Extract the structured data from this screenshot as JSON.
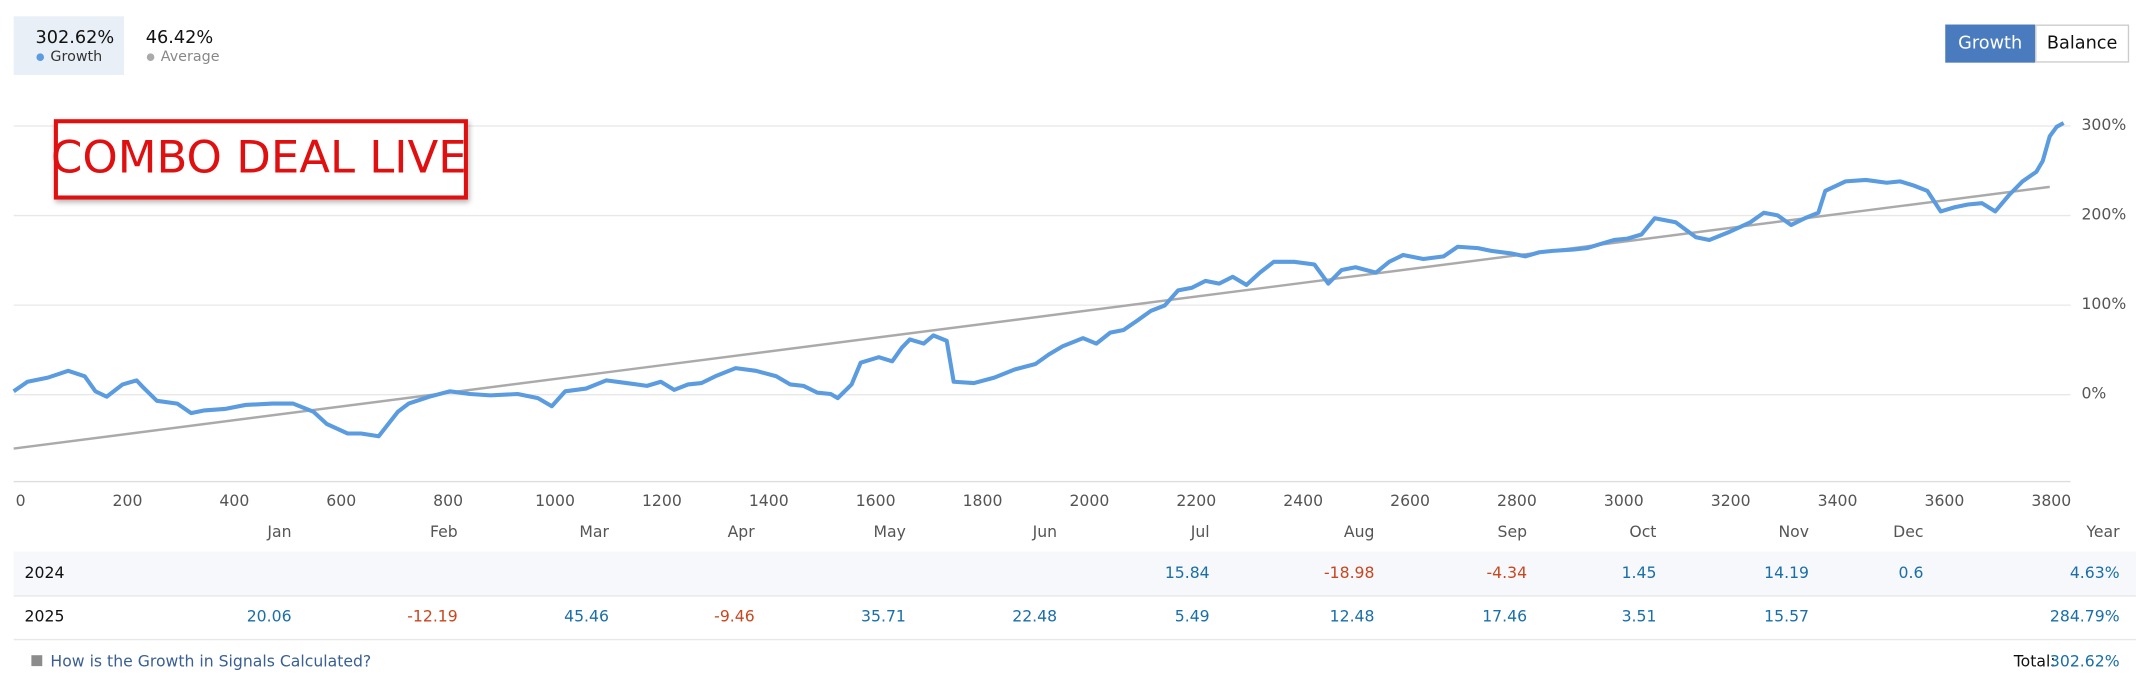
{
  "header": {
    "growth_value": "302.62%",
    "average_value": "46.42%",
    "tabs": [
      "Growth",
      "Balance"
    ]
  },
  "annotation": "COMBO DEAL LIVE",
  "chart_data": {
    "type": "line",
    "series": [
      {
        "name": "Growth",
        "color": "#5b9be0",
        "x": [
          -13,
          13,
          51,
          89,
          120,
          140,
          161,
          191,
          217,
          229,
          255,
          293,
          319,
          344,
          382,
          421,
          471,
          510,
          548,
          573,
          612,
          637,
          670,
          688,
          706,
          726,
          765,
          803,
          841,
          879,
          930,
          968,
          994,
          1019,
          1058,
          1096,
          1134,
          1172,
          1198,
          1223,
          1249,
          1274,
          1300,
          1338,
          1376,
          1414,
          1440,
          1465,
          1491,
          1516,
          1529,
          1555,
          1572,
          1606,
          1631,
          1649,
          1664,
          1690,
          1708,
          1733,
          1746,
          1784,
          1822,
          1860,
          1899,
          1924,
          1950,
          1988,
          2013,
          2039,
          2064,
          2090,
          2115,
          2141,
          2166,
          2192,
          2217,
          2243,
          2268,
          2294,
          2319,
          2345,
          2383,
          2421,
          2447,
          2472,
          2498,
          2536,
          2561,
          2587,
          2625,
          2663,
          2689,
          2727,
          2752,
          2791,
          2816,
          2842,
          2867,
          2905,
          2931,
          2956,
          2982,
          3007,
          3033,
          3058,
          3097,
          3135,
          3160,
          3198,
          3237,
          3262,
          3288,
          3313,
          3339,
          3364,
          3377,
          3415,
          3453,
          3492,
          3517,
          3542,
          3568,
          3593,
          3619,
          3644,
          3670,
          3695,
          3721,
          3746,
          3772,
          3784,
          3797,
          3810,
          3823
        ],
        "values": [
          3.0,
          13.7,
          18.3,
          25.9,
          19.8,
          3.0,
          -3.0,
          10.7,
          15.2,
          7.6,
          -7.6,
          -10.7,
          -21.3,
          -18.3,
          -16.7,
          -12.2,
          -10.7,
          -10.7,
          -19.8,
          -33.5,
          -44.1,
          -44.1,
          -47.2,
          -33.5,
          -19.8,
          -10.7,
          -3.0,
          3.0,
          0,
          -1.5,
          0,
          -4.6,
          -13.7,
          3.0,
          6.1,
          15.2,
          12.2,
          9.1,
          13.7,
          4.6,
          10.7,
          12.2,
          19.8,
          28.9,
          25.9,
          19.8,
          10.7,
          9.1,
          1.5,
          0,
          -4.6,
          10.7,
          35.0,
          41.1,
          36.5,
          51.7,
          60.9,
          56.3,
          65.4,
          59.4,
          13.7,
          12.2,
          18.3,
          27.4,
          33.5,
          44.1,
          53.3,
          62.4,
          56.3,
          68.5,
          71.5,
          82.2,
          92.8,
          98.9,
          115.7,
          118.7,
          126.3,
          123.3,
          130.9,
          121.8,
          135.5,
          147.6,
          147.6,
          144.6,
          123.3,
          138.5,
          141.5,
          135.5,
          147.6,
          155.2,
          150.7,
          153.7,
          164.4,
          162.9,
          159.8,
          156.8,
          153.7,
          158.3,
          159.8,
          161.3,
          162.9,
          167.4,
          172.0,
          173.5,
          178.1,
          196.3,
          191.8,
          175.0,
          172.0,
          181.1,
          191.8,
          202.4,
          199.4,
          188.7,
          196.3,
          202.4,
          226.8,
          237.4,
          239.0,
          235.9,
          237.4,
          232.9,
          226.8,
          203.9,
          208.5,
          211.6,
          213.1,
          203.9,
          222.2,
          237.4,
          248.1,
          260.3,
          287.7,
          298.3,
          302.62
        ]
      },
      {
        "name": "Average",
        "color": "#aaaaaa",
        "x": [
          -13,
          3797
        ],
        "values": [
          -60.9,
          231.3
        ]
      }
    ],
    "xlim": [
      -13,
      3836
    ],
    "xticks": [
      0,
      200,
      400,
      600,
      800,
      1000,
      1200,
      1400,
      1600,
      1800,
      2000,
      2200,
      2400,
      2600,
      2800,
      3000,
      3200,
      3400,
      3600,
      3800
    ],
    "ylim": [
      -100,
      300
    ],
    "yticks": [
      {
        "value": 0,
        "label": "0%"
      },
      {
        "value": 100,
        "label": "100%"
      },
      {
        "value": 200,
        "label": "200%"
      },
      {
        "value": 300,
        "label": "300%"
      }
    ],
    "grid": true
  },
  "table": {
    "header": [
      "Jan",
      "Feb",
      "Mar",
      "Apr",
      "May",
      "Jun",
      "Jul",
      "Aug",
      "Sep",
      "Oct",
      "Nov",
      "Dec",
      "Year"
    ],
    "rows": [
      [
        "2024",
        null,
        null,
        null,
        null,
        null,
        null,
        "15.84",
        "-18.98",
        "-4.34",
        "1.45",
        "14.19",
        "0.6",
        "4.63%"
      ],
      [
        "2025",
        "20.06",
        "-12.19",
        "45.46",
        "-9.46",
        "35.71",
        "22.48",
        "5.49",
        "12.48",
        "17.46",
        "3.51",
        "15.57",
        null,
        "284.79%"
      ]
    ]
  },
  "footer": {
    "link": "How is the Growth in Signals Calculated?",
    "total_label": "Total:",
    "total": "302.62%"
  }
}
